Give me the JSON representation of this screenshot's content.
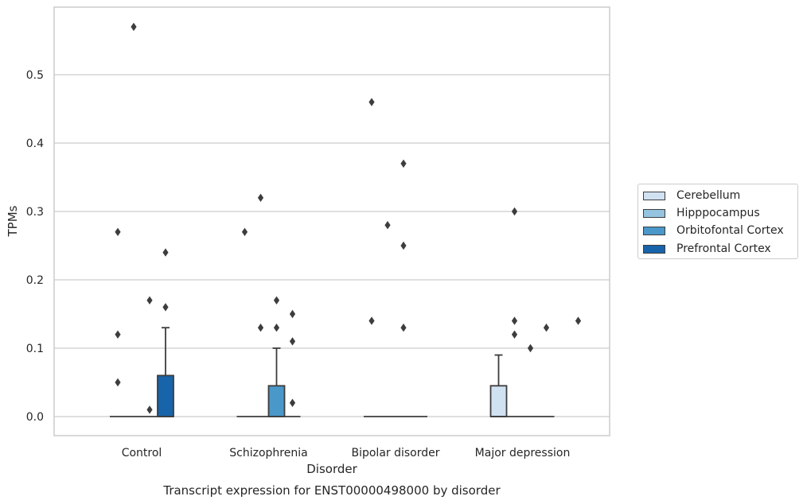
{
  "chart_data": {
    "type": "box",
    "title": "Transcript expression for ENST00000498000 by disorder",
    "xlabel": "Disorder",
    "ylabel": "TPMs",
    "ylim": [
      -0.028,
      0.6
    ],
    "yticks": [
      "0.0",
      "0.1",
      "0.2",
      "0.3",
      "0.4",
      "0.5"
    ],
    "grid": "horizontal",
    "legend_position": "right",
    "categories": [
      "Control",
      "Schizophrenia",
      "Bipolar disorder",
      "Major depression"
    ],
    "series": [
      {
        "name": "Cerebellum",
        "color": "#d0e1f2",
        "boxes": [
          {
            "q1": 0,
            "median": 0,
            "q3": 0,
            "whisker_low": 0,
            "whisker_high": 0,
            "outliers": [
              0.27,
              0.12,
              0.05
            ]
          },
          {
            "q1": 0,
            "median": 0,
            "q3": 0,
            "whisker_low": 0,
            "whisker_high": 0,
            "outliers": [
              0.27
            ]
          },
          {
            "q1": 0,
            "median": 0,
            "q3": 0,
            "whisker_low": 0,
            "whisker_high": 0,
            "outliers": [
              0.46,
              0.14
            ]
          },
          {
            "q1": 0,
            "median": 0,
            "q3": 0.045,
            "whisker_low": 0,
            "whisker_high": 0.09,
            "outliers": []
          }
        ]
      },
      {
        "name": "Hipppocampus",
        "color": "#94c4df",
        "boxes": [
          {
            "q1": 0,
            "median": 0,
            "q3": 0,
            "whisker_low": 0,
            "whisker_high": 0,
            "outliers": [
              0.57
            ]
          },
          {
            "q1": 0,
            "median": 0,
            "q3": 0,
            "whisker_low": 0,
            "whisker_high": 0,
            "outliers": [
              0.32,
              0.13
            ]
          },
          {
            "q1": 0,
            "median": 0,
            "q3": 0,
            "whisker_low": 0,
            "whisker_high": 0,
            "outliers": [
              0.28
            ]
          },
          {
            "q1": 0,
            "median": 0,
            "q3": 0,
            "whisker_low": 0,
            "whisker_high": 0,
            "outliers": [
              0.3,
              0.14,
              0.12
            ]
          }
        ]
      },
      {
        "name": "Orbitofontal Cortex",
        "color": "#4a98c9",
        "boxes": [
          {
            "q1": 0,
            "median": 0,
            "q3": 0,
            "whisker_low": 0,
            "whisker_high": 0,
            "outliers": [
              0.17,
              0.01
            ]
          },
          {
            "q1": 0,
            "median": 0,
            "q3": 0.045,
            "whisker_low": 0,
            "whisker_high": 0.1,
            "outliers": [
              0.17,
              0.13
            ]
          },
          {
            "q1": 0,
            "median": 0,
            "q3": 0,
            "whisker_low": 0,
            "whisker_high": 0,
            "outliers": [
              0.37,
              0.25,
              0.13
            ]
          },
          {
            "q1": 0,
            "median": 0,
            "q3": 0,
            "whisker_low": 0,
            "whisker_high": 0,
            "outliers": [
              0.1
            ]
          }
        ]
      },
      {
        "name": "Prefrontal Cortex",
        "color": "#1764ab",
        "boxes": [
          {
            "q1": 0,
            "median": 0,
            "q3": 0.06,
            "whisker_low": 0,
            "whisker_high": 0.13,
            "outliers": [
              0.24,
              0.16
            ]
          },
          {
            "q1": 0,
            "median": 0,
            "q3": 0,
            "whisker_low": 0,
            "whisker_high": 0,
            "outliers": [
              0.15,
              0.11,
              0.02
            ]
          },
          {
            "q1": 0,
            "median": 0,
            "q3": 0,
            "whisker_low": 0,
            "whisker_high": 0,
            "outliers": []
          },
          {
            "q1": 0,
            "median": 0,
            "q3": 0,
            "whisker_low": 0,
            "whisker_high": 0,
            "outliers": [
              0.13
            ]
          }
        ]
      }
    ]
  },
  "extra_outliers": [
    {
      "category": 3,
      "series": 3,
      "value": 0.14
    }
  ]
}
